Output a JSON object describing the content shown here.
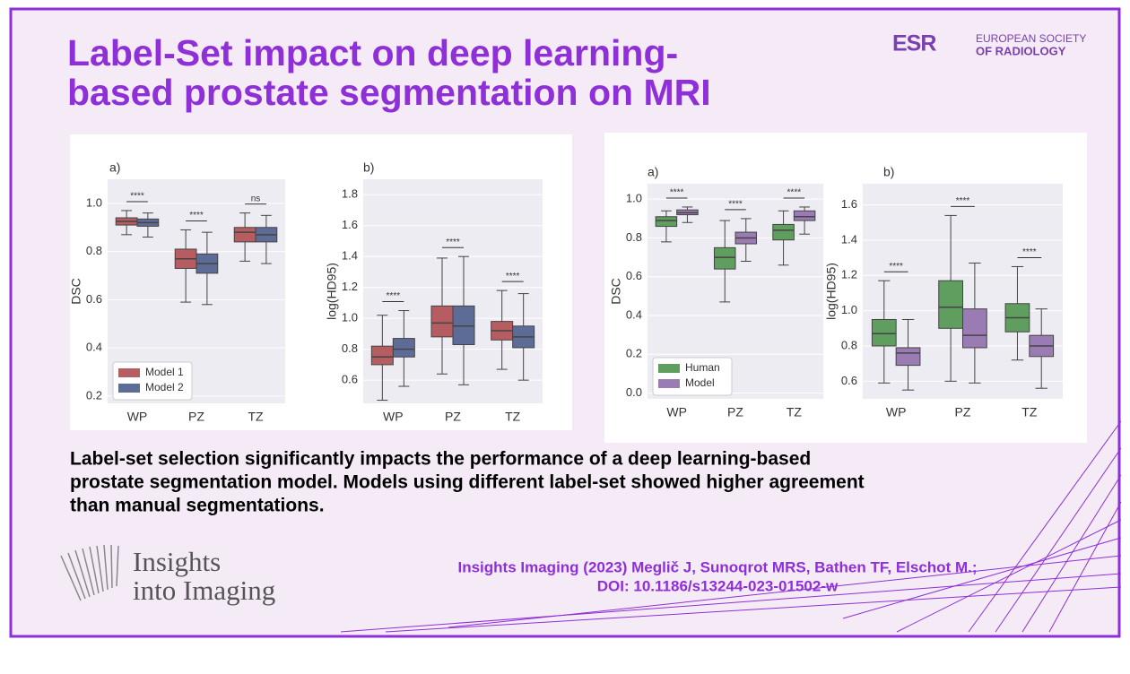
{
  "header": {
    "title_lines": [
      "Label-Set impact on deep learning-",
      "based prostate segmentation on MRI"
    ],
    "logo": {
      "mark": "ESR",
      "lines": [
        "EUROPEAN SOCIETY",
        "OF RADIOLOGY"
      ]
    }
  },
  "chart_data": [
    {
      "type": "box",
      "panel_label": "a)",
      "y_label": "DSC",
      "categories": [
        "WP",
        "PZ",
        "TZ"
      ],
      "ylim": [
        0.17,
        1.1
      ],
      "yticks": [
        0.2,
        0.4,
        0.6,
        0.8,
        {
          "value": 1,
          "label": "1.0"
        }
      ],
      "grid": true,
      "legend": "lower left",
      "annotations": [
        "****",
        "****",
        "ns"
      ],
      "series": [
        {
          "name": "Model 1",
          "color": "#b55d60",
          "whislo": [
            0.87,
            0.59,
            0.76
          ],
          "q1": [
            0.91,
            0.73,
            0.84
          ],
          "med": [
            0.925,
            0.77,
            0.88
          ],
          "q3": [
            0.94,
            0.81,
            0.9
          ],
          "whishi": [
            0.97,
            0.89,
            0.96
          ]
        },
        {
          "name": "Model 2",
          "color": "#5d6b97",
          "whislo": [
            0.86,
            0.58,
            0.75
          ],
          "q1": [
            0.905,
            0.71,
            0.84
          ],
          "med": [
            0.92,
            0.75,
            0.87
          ],
          "q3": [
            0.935,
            0.79,
            0.9
          ],
          "whishi": [
            0.96,
            0.88,
            0.95
          ]
        }
      ]
    },
    {
      "type": "box",
      "panel_label": "b)",
      "y_label": "log(HD95)",
      "categories": [
        "WP",
        "PZ",
        "TZ"
      ],
      "ylim": [
        0.45,
        1.9
      ],
      "yticks": [
        0.6,
        0.8,
        {
          "value": 1,
          "label": "1.0"
        },
        1.2,
        1.4,
        1.6,
        1.8
      ],
      "grid": true,
      "annotations": [
        "****",
        "****",
        "****"
      ],
      "series": [
        {
          "name": "Model 1",
          "color": "#b55d60",
          "whislo": [
            0.47,
            0.64,
            0.67
          ],
          "q1": [
            0.7,
            0.88,
            0.86
          ],
          "med": [
            0.75,
            0.97,
            0.92
          ],
          "q3": [
            0.82,
            1.08,
            0.98
          ],
          "whishi": [
            1.02,
            1.39,
            1.18
          ]
        },
        {
          "name": "Model 2",
          "color": "#5d6b97",
          "whislo": [
            0.56,
            0.57,
            0.6
          ],
          "q1": [
            0.75,
            0.83,
            0.81
          ],
          "med": [
            0.8,
            0.95,
            0.88
          ],
          "q3": [
            0.87,
            1.08,
            0.95
          ],
          "whishi": [
            1.05,
            1.4,
            1.16
          ]
        }
      ]
    },
    {
      "type": "box",
      "panel_label": "a)",
      "y_label": "DSC",
      "categories": [
        "WP",
        "PZ",
        "TZ"
      ],
      "ylim": [
        -0.03,
        1.08
      ],
      "yticks": [
        {
          "value": 0,
          "label": "0.0"
        },
        0.2,
        0.4,
        0.6,
        0.8,
        {
          "value": 1,
          "label": "1.0"
        }
      ],
      "grid": true,
      "legend": "lower left",
      "annotations": [
        "****",
        "****",
        "****"
      ],
      "series": [
        {
          "name": "Human",
          "color": "#5f9e5f",
          "whislo": [
            0.78,
            0.47,
            0.66
          ],
          "q1": [
            0.86,
            0.64,
            0.79
          ],
          "med": [
            0.89,
            0.7,
            0.84
          ],
          "q3": [
            0.91,
            0.75,
            0.87
          ],
          "whishi": [
            0.94,
            0.89,
            0.94
          ]
        },
        {
          "name": "Model",
          "color": "#9b7bb3",
          "whislo": [
            0.88,
            0.68,
            0.82
          ],
          "q1": [
            0.92,
            0.77,
            0.89
          ],
          "med": [
            0.93,
            0.8,
            0.91
          ],
          "q3": [
            0.945,
            0.83,
            0.94
          ],
          "whishi": [
            0.96,
            0.9,
            0.96
          ]
        }
      ]
    },
    {
      "type": "box",
      "panel_label": "b)",
      "y_label": "log(HD95)",
      "categories": [
        "WP",
        "PZ",
        "TZ"
      ],
      "ylim": [
        0.5,
        1.72
      ],
      "yticks": [
        0.6,
        0.8,
        {
          "value": 1,
          "label": "1.0"
        },
        1.2,
        1.4,
        1.6
      ],
      "grid": true,
      "annotations": [
        "****",
        "****",
        "****"
      ],
      "series": [
        {
          "name": "Human",
          "color": "#5f9e5f",
          "whislo": [
            0.59,
            0.6,
            0.72
          ],
          "q1": [
            0.8,
            0.9,
            0.88
          ],
          "med": [
            0.87,
            1.02,
            0.96
          ],
          "q3": [
            0.95,
            1.17,
            1.04
          ],
          "whishi": [
            1.17,
            1.54,
            1.25
          ]
        },
        {
          "name": "Model",
          "color": "#9b7bb3",
          "whislo": [
            0.55,
            0.59,
            0.56
          ],
          "q1": [
            0.69,
            0.79,
            0.74
          ],
          "med": [
            0.76,
            0.86,
            0.8
          ],
          "q3": [
            0.79,
            1.01,
            0.86
          ],
          "whishi": [
            0.95,
            1.27,
            1.01
          ]
        }
      ]
    }
  ],
  "summary_lines": [
    "Label-set selection significantly impacts the performance of a deep learning-based",
    "prostate segmentation model. Models using different label-set showed higher agreement",
    "than manual segmentations."
  ],
  "footer": {
    "journal_lines": [
      "Insights",
      "into Imaging"
    ],
    "citation_lines": [
      "Insights Imaging (2023) Meglič J, Sunoqrot MRS, Bathen TF, Elschot M.;",
      "DOI: 10.1186/s13244-023-01502-w"
    ]
  }
}
